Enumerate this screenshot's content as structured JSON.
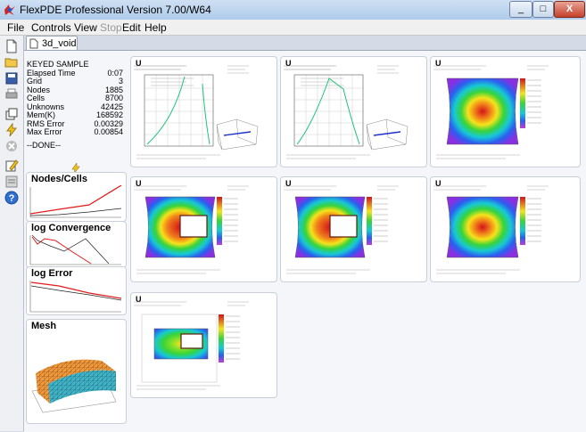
{
  "window": {
    "title": "FlexPDE Professional Version 7.00/W64",
    "minimize": "_",
    "maximize": "□",
    "close": "X"
  },
  "menu": {
    "file": "File",
    "controls": "Controls",
    "view": "View",
    "stop": "Stop",
    "edit": "Edit",
    "help": "Help"
  },
  "tab": {
    "label": "3d_void"
  },
  "status": {
    "heading": "KEYED SAMPLE",
    "rows": [
      {
        "label": "Elapsed Time",
        "value": "0:07"
      },
      {
        "label": "Grid",
        "value": "3"
      },
      {
        "label": "Nodes",
        "value": "1885"
      },
      {
        "label": "Cells",
        "value": "8700"
      },
      {
        "label": "Unknowns",
        "value": "42425"
      },
      {
        "label": "Mem(K)",
        "value": "168592"
      },
      {
        "label": "RMS Error",
        "value": "0.00329"
      },
      {
        "label": "Max Error",
        "value": "0.00854"
      }
    ],
    "done": "--DONE--"
  },
  "panels": {
    "nodes_cells": "Nodes/Cells",
    "log_convergence": "log Convergence",
    "log_error": "log Error",
    "mesh": "Mesh"
  },
  "plots": {
    "label": "U"
  },
  "colors": {
    "accent": "#f2c21b",
    "line_red": "#e21b1b",
    "line_green": "#1fc37a"
  }
}
